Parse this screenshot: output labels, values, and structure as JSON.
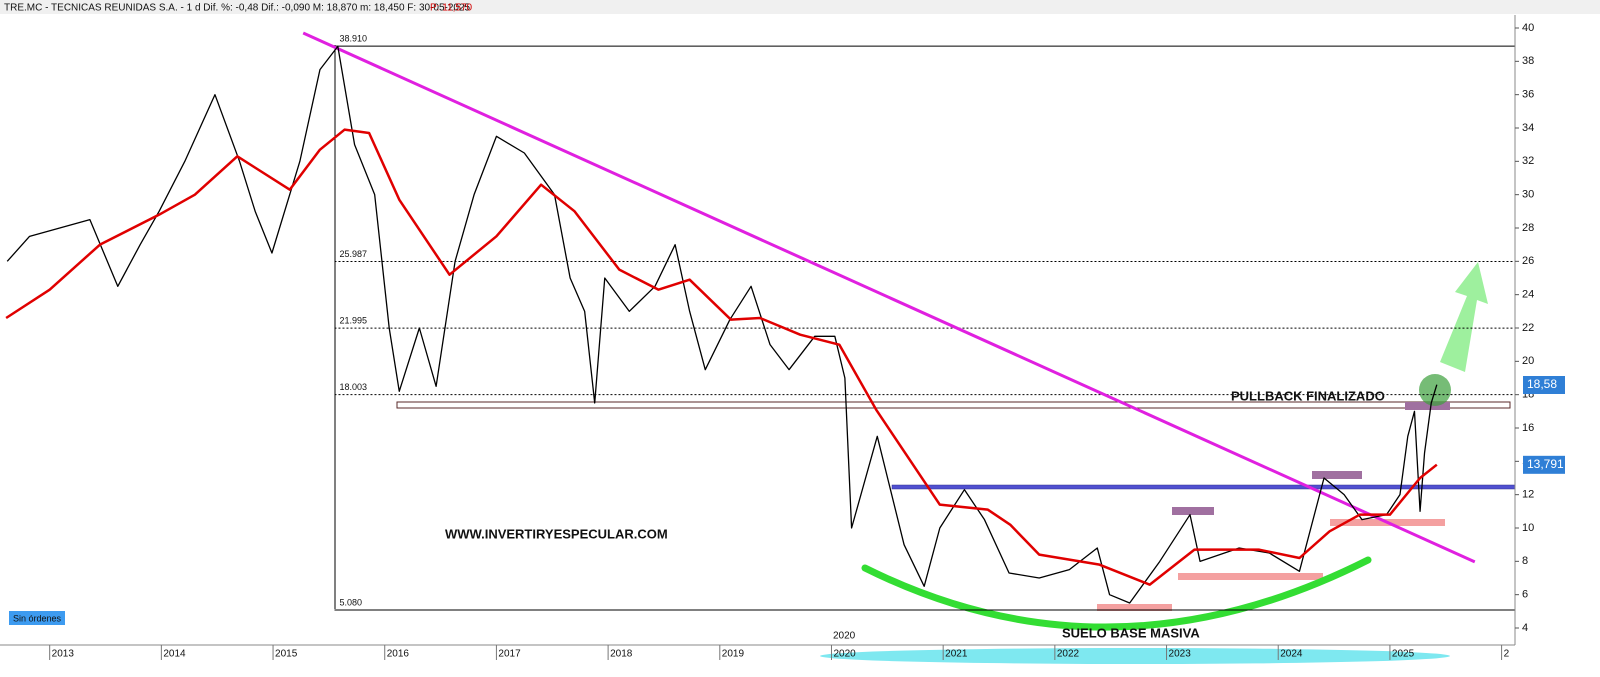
{
  "chart_data": {
    "type": "line",
    "title": "TRE.MC - TECNICAS REUNIDAS S.A. -  1 d  Dif. %: -0,48  Dif.: -0,090  M: 18,870  m: 18,450  F: 30-05-2025",
    "price_text": "P: 11,570",
    "xlim": [
      2012.6,
      2026.12
    ],
    "xticks": [
      2013,
      2014,
      2015,
      2016,
      2017,
      2018,
      2019,
      2020,
      2021,
      2022,
      2023,
      2024,
      2025,
      {
        "value": 2026,
        "label": "2"
      }
    ],
    "ylim": [
      2.98,
      40.78
    ],
    "yticks": [
      4,
      6,
      8,
      10,
      12,
      14,
      16,
      18,
      20,
      22,
      24,
      26,
      28,
      30,
      32,
      34,
      36,
      38,
      40
    ],
    "series": [
      {
        "color": "#000000",
        "x": [
          2012.62,
          2012.82,
          2013.09,
          2013.36,
          2013.61,
          2013.81,
          2013.98,
          2014.21,
          2014.48,
          2014.7,
          2014.84,
          2014.99,
          2015.24,
          2015.42,
          2015.58,
          2015.73,
          2015.91,
          2016.04,
          2016.13,
          2016.31,
          2016.46,
          2016.63,
          2016.8,
          2017.0,
          2017.25,
          2017.52,
          2017.66,
          2017.79,
          2017.88,
          2017.97,
          2018.19,
          2018.42,
          2018.6,
          2018.73,
          2018.87,
          2019.09,
          2019.28,
          2019.45,
          2019.62,
          2019.85,
          2020.03,
          2020.12,
          2020.18,
          2020.41,
          2020.65,
          2020.83,
          2020.97,
          2021.19,
          2021.37,
          2021.59,
          2021.86,
          2022.13,
          2022.38,
          2022.49,
          2022.67,
          2022.94,
          2023.21,
          2023.3,
          2023.65,
          2023.92,
          2024.19,
          2024.41,
          2024.59,
          2024.75,
          2024.97,
          2025.09,
          2025.16,
          2025.22,
          2025.27,
          2025.31,
          2025.37,
          2025.42
        ],
        "values": [
          26,
          27.5,
          28,
          28.5,
          24.5,
          27,
          29,
          32,
          36,
          32,
          29,
          26.5,
          32,
          37.5,
          38.9,
          33,
          30,
          22,
          18.2,
          22,
          18.5,
          26,
          30,
          33.5,
          32.5,
          30,
          25,
          23,
          17.5,
          25,
          23,
          24.5,
          27,
          23,
          19.5,
          22.5,
          24.5,
          21,
          19.5,
          21.5,
          21.5,
          19,
          10,
          15.5,
          9,
          6.5,
          10,
          12.3,
          10.5,
          7.3,
          7,
          7.5,
          8.8,
          6,
          5.5,
          8,
          10.8,
          8,
          8.8,
          8.5,
          7.4,
          13,
          12,
          10.5,
          10.8,
          12,
          15.5,
          17,
          11,
          14.5,
          17.5,
          18.6
        ]
      },
      {
        "color": "#e00000",
        "x": [
          2012.61,
          2013.0,
          2013.45,
          2013.98,
          2014.3,
          2014.68,
          2015.15,
          2015.42,
          2015.64,
          2015.86,
          2016.13,
          2016.58,
          2017.0,
          2017.4,
          2017.7,
          2018.1,
          2018.45,
          2018.73,
          2019.1,
          2019.36,
          2019.72,
          2020.07,
          2020.4,
          2020.97,
          2021.4,
          2021.6,
          2021.86,
          2022.4,
          2022.85,
          2023.25,
          2023.83,
          2024.19,
          2024.46,
          2024.73,
          2025.0,
          2025.27,
          2025.42
        ],
        "values": [
          22.6,
          24.3,
          27,
          28.8,
          30,
          32.3,
          30.3,
          32.7,
          33.9,
          33.7,
          29.7,
          25.2,
          27.5,
          30.6,
          29,
          25.5,
          24.3,
          24.9,
          22.5,
          22.6,
          21.6,
          21,
          17.1,
          11.4,
          11.1,
          10.2,
          8.4,
          7.8,
          6.6,
          8.7,
          8.7,
          8.2,
          9.8,
          10.8,
          10.8,
          13,
          13.8
        ]
      }
    ],
    "trendline": {
      "color": "#e020e0",
      "x": [
        2015.27,
        2025.76
      ],
      "values": [
        39.7,
        7.97
      ]
    },
    "levels": [
      {
        "value": 38.91,
        "label": "38.910"
      },
      {
        "value": 25.987,
        "label": "25.987"
      },
      {
        "value": 21.995,
        "label": "21.995"
      },
      {
        "value": 18.003,
        "label": "18.003"
      },
      {
        "value": 5.08,
        "label": "5.080"
      }
    ],
    "levels_start": 2015.55,
    "last_values": [
      {
        "value": 18.58,
        "label": "18,58"
      },
      {
        "value": 13.791,
        "label": "13,791"
      }
    ],
    "annotations": [
      "WWW.INVERTIRYESPECULAR.COM",
      "PULLBACK FINALIZADO",
      "SUELO BASE MASIVA",
      "2020"
    ],
    "status": "Sin órdenes"
  }
}
